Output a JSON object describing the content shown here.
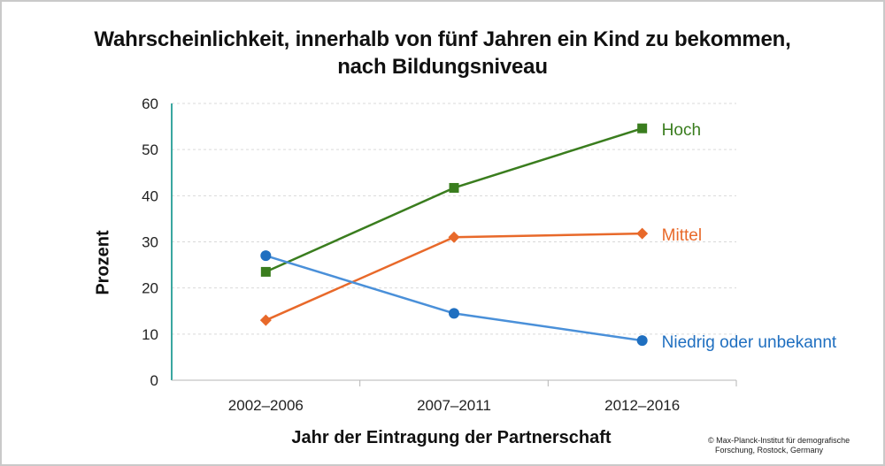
{
  "title_line1": "Wahrscheinlichkeit, innerhalb von fünf Jahren ein Kind zu bekommen,",
  "title_line2": "nach Bildungsniveau",
  "credit_line1": "© Max-Planck-Institut für demografische",
  "credit_line2": "Forschung, Rostock, Germany",
  "chart_data": {
    "type": "line",
    "title": "Wahrscheinlichkeit, innerhalb von fünf Jahren ein Kind zu bekommen, nach Bildungsniveau",
    "xlabel": "Jahr der Eintragung der Partnerschaft",
    "ylabel": "Prozent",
    "categories": [
      "2002–2006",
      "2007–2011",
      "2012–2016"
    ],
    "ylim": [
      0,
      60
    ],
    "yticks": [
      0,
      10,
      20,
      30,
      40,
      50,
      60
    ],
    "grid": true,
    "legend": "direct labels at line ends",
    "series": [
      {
        "name": "Hoch",
        "values": [
          23.5,
          41.7,
          54.6
        ],
        "color": "#3a7d1e",
        "marker": "square"
      },
      {
        "name": "Mittel",
        "values": [
          13.0,
          31.0,
          31.8
        ],
        "color": "#e8692a",
        "marker": "diamond"
      },
      {
        "name": "Niedrig oder unbekannt",
        "values": [
          27.0,
          14.5,
          8.6
        ],
        "color": "#4a90d9",
        "marker": "circle",
        "label_color": "#1f6fc0"
      }
    ]
  }
}
